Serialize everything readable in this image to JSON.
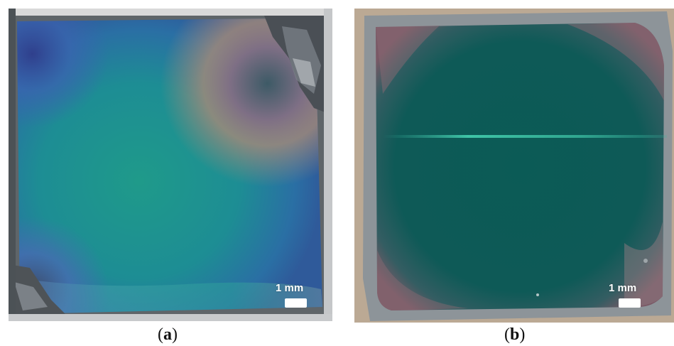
{
  "figure": {
    "panels": [
      {
        "id": "a",
        "caption_open": "(",
        "caption_letter": "a",
        "caption_close": ")",
        "scale_bar_label": "1 mm",
        "dominant_colors": [
          "#1f8f8a",
          "#2a7ea0",
          "#8a7a86",
          "#3b3f44"
        ]
      },
      {
        "id": "b",
        "caption_open": "(",
        "caption_letter": "b",
        "caption_close": ")",
        "scale_bar_label": "1 mm",
        "dominant_colors": [
          "#0c5a55",
          "#7b5966",
          "#8f969c",
          "#b9a894"
        ]
      }
    ]
  }
}
